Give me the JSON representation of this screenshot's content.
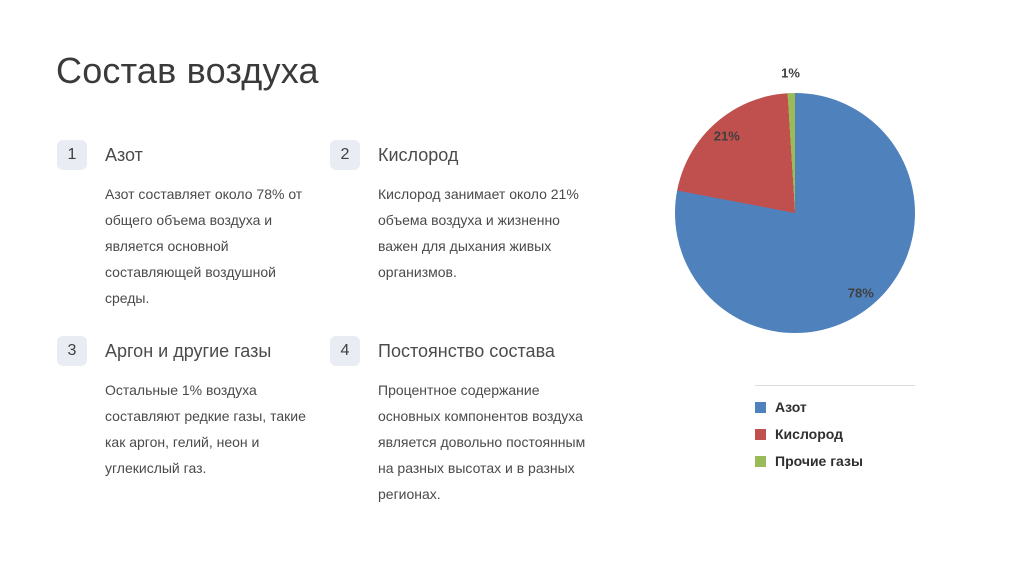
{
  "page": {
    "title": "Состав воздуха"
  },
  "items": [
    {
      "number": "1",
      "heading": "Азот",
      "body": "Азот составляет около 78% от общего объема воздуха и является основной составляющей воздушной среды."
    },
    {
      "number": "2",
      "heading": "Кислород",
      "body": "Кислород занимает около 21% объема воздуха и жизненно важен для дыхания живых организмов."
    },
    {
      "number": "3",
      "heading": "Аргон и другие газы",
      "body": "Остальные 1% воздуха составляют редкие газы, такие как аргон, гелий, неон и углекислый газ."
    },
    {
      "number": "4",
      "heading": "Постоянство состава",
      "body": "Процентное содержание основных компонентов воздуха является довольно постоянным на разных высотах и в разных регионах."
    }
  ],
  "chart_data": {
    "type": "pie",
    "labels": [
      "Азот",
      "Кислород",
      "Прочие газы"
    ],
    "values": [
      78,
      21,
      1
    ],
    "data_labels": [
      "78%",
      "21%",
      "1%"
    ],
    "colors": [
      "#4F81BD",
      "#C0504D",
      "#9BBB59"
    ],
    "start_angle_deg": 0,
    "direction": "clockwise",
    "legend_position": "bottom"
  }
}
